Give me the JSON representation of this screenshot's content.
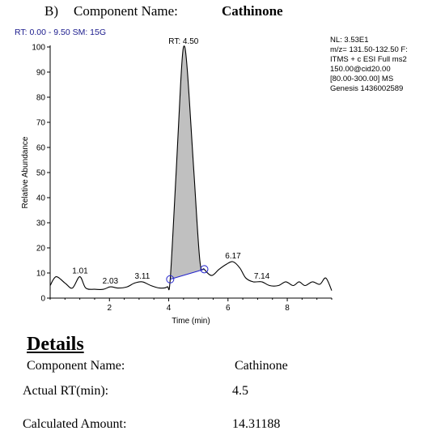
{
  "header": {
    "panel": "B)",
    "label": "Component Name:",
    "value": "Cathinone"
  },
  "rt_range": "RT: 0.00 - 9.50  SM: 15G",
  "ms_info": [
    "NL: 3.53E1",
    "m/z= 131.50-132.50 F:",
    "ITMS + c ESI Full ms2",
    "150.00@cid20.00",
    "[80.00-300.00]  MS",
    "Genesis 1436002589"
  ],
  "chart_data": {
    "type": "line",
    "xlabel": "Time (min)",
    "ylabel": "Relative Abundance",
    "xlim": [
      0,
      9.5
    ],
    "ylim": [
      0,
      100
    ],
    "xticks": [
      2,
      4,
      6,
      8
    ],
    "yticks": [
      0,
      10,
      20,
      30,
      40,
      50,
      60,
      70,
      80,
      90,
      100
    ],
    "grid": false,
    "series": [
      {
        "x": [
          0.0,
          0.2,
          0.5,
          0.75,
          1.0,
          1.2,
          1.5,
          1.8,
          2.03,
          2.3,
          2.6,
          2.85,
          3.11,
          3.4,
          3.7,
          3.95,
          4.05,
          4.25,
          4.4,
          4.5,
          4.62,
          4.85,
          5.05,
          5.2,
          5.45,
          5.7,
          5.95,
          6.17,
          6.4,
          6.6,
          6.85,
          7.14,
          7.4,
          7.7,
          7.95,
          8.2,
          8.4,
          8.6,
          8.85,
          9.1,
          9.3,
          9.5
        ],
        "y": [
          5,
          8.5,
          6,
          4,
          8.5,
          4,
          3.5,
          3.5,
          4.5,
          4,
          4.5,
          6,
          6.5,
          5,
          4,
          4.5,
          7.5,
          50,
          85,
          100,
          92,
          50,
          15,
          11.5,
          9,
          11.5,
          13.5,
          14.5,
          12,
          8,
          6.5,
          6.5,
          5,
          5,
          6.5,
          5,
          6.5,
          5,
          6.5,
          5.5,
          8,
          3
        ]
      }
    ],
    "peak_labels": [
      {
        "x": 1.01,
        "y": 8.5,
        "text": "1.01"
      },
      {
        "x": 2.03,
        "y": 4.5,
        "text": "2.03"
      },
      {
        "x": 3.11,
        "y": 6.5,
        "text": "3.11"
      },
      {
        "x": 4.5,
        "y": 100,
        "text": "RT: 4.50"
      },
      {
        "x": 6.17,
        "y": 14.5,
        "text": "6.17"
      },
      {
        "x": 7.14,
        "y": 6.5,
        "text": "7.14"
      }
    ],
    "integrated_peak": {
      "start": 4.05,
      "end": 5.2
    },
    "colors": {
      "line": "#000000",
      "fill": "#c0c0c0",
      "baseline": "#2222cc"
    }
  },
  "details": {
    "title": "Details",
    "rows": [
      {
        "label": "Component Name:",
        "value": "Cathinone"
      },
      {
        "label": "Actual RT(min):",
        "value": "4.5"
      },
      {
        "label": "Calculated Amount:",
        "value": "14.31188"
      }
    ]
  }
}
